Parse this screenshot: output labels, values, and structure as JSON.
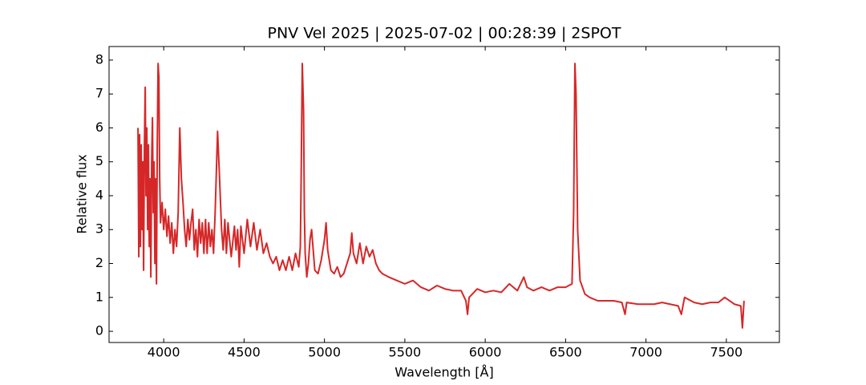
{
  "chart_data": {
    "type": "line",
    "title": "PNV Vel 2025 | 2025-07-02 | 00:28:39 | 2SPOT",
    "x_label": "Wavelength [Å]",
    "y_label": "Relative flux",
    "xlim": [
      3660,
      7830
    ],
    "ylim": [
      -0.33,
      8.4
    ],
    "xticks": [
      4000,
      4500,
      5000,
      5500,
      6000,
      6500,
      7000,
      7500
    ],
    "yticks": [
      0,
      1,
      2,
      3,
      4,
      5,
      6,
      7,
      8
    ],
    "grid": false,
    "series": [
      {
        "color": "#d62728",
        "x": [
          3840,
          3845,
          3850,
          3855,
          3860,
          3865,
          3870,
          3875,
          3880,
          3885,
          3890,
          3895,
          3900,
          3905,
          3910,
          3915,
          3920,
          3925,
          3930,
          3935,
          3940,
          3945,
          3950,
          3955,
          3960,
          3965,
          3970,
          3975,
          3980,
          3990,
          4000,
          4010,
          4020,
          4030,
          4040,
          4050,
          4060,
          4070,
          4080,
          4090,
          4100,
          4110,
          4120,
          4130,
          4140,
          4150,
          4160,
          4170,
          4180,
          4190,
          4200,
          4210,
          4220,
          4230,
          4240,
          4250,
          4260,
          4270,
          4280,
          4290,
          4300,
          4310,
          4320,
          4335,
          4345,
          4360,
          4370,
          4380,
          4390,
          4400,
          4420,
          4440,
          4450,
          4460,
          4470,
          4480,
          4500,
          4520,
          4540,
          4560,
          4580,
          4600,
          4620,
          4640,
          4660,
          4680,
          4700,
          4720,
          4740,
          4760,
          4780,
          4800,
          4820,
          4840,
          4850,
          4855,
          4862,
          4870,
          4875,
          4880,
          4890,
          4900,
          4910,
          4920,
          4930,
          4940,
          4960,
          4980,
          5000,
          5010,
          5020,
          5040,
          5060,
          5080,
          5100,
          5120,
          5140,
          5160,
          5170,
          5180,
          5200,
          5220,
          5240,
          5260,
          5280,
          5300,
          5320,
          5340,
          5360,
          5400,
          5450,
          5500,
          5550,
          5600,
          5650,
          5700,
          5750,
          5800,
          5850,
          5880,
          5890,
          5900,
          5950,
          6000,
          6050,
          6100,
          6150,
          6200,
          6240,
          6260,
          6300,
          6350,
          6400,
          6450,
          6500,
          6540,
          6550,
          6558,
          6565,
          6575,
          6590,
          6620,
          6650,
          6700,
          6750,
          6800,
          6850,
          6870,
          6880,
          6950,
          7000,
          7050,
          7100,
          7150,
          7200,
          7220,
          7240,
          7300,
          7350,
          7400,
          7450,
          7490,
          7550,
          7590,
          7600,
          7610
        ],
        "values": [
          6.0,
          2.2,
          5.8,
          2.5,
          5.5,
          3.0,
          5.0,
          1.8,
          5.5,
          7.2,
          4.0,
          6.0,
          3.0,
          5.5,
          2.5,
          4.5,
          1.6,
          5.0,
          6.3,
          3.5,
          5.0,
          2.0,
          4.5,
          1.4,
          5.5,
          7.9,
          7.5,
          4.5,
          3.2,
          3.8,
          3.0,
          3.6,
          2.8,
          3.4,
          2.6,
          3.2,
          2.3,
          3.0,
          2.5,
          3.5,
          6.0,
          4.5,
          3.8,
          3.0,
          2.5,
          3.3,
          2.7,
          3.2,
          3.6,
          2.4,
          3.0,
          2.2,
          3.3,
          2.6,
          3.2,
          2.3,
          3.3,
          2.3,
          3.2,
          2.5,
          3.0,
          2.3,
          3.5,
          5.9,
          4.8,
          3.0,
          2.4,
          3.3,
          2.3,
          3.2,
          2.2,
          3.1,
          2.4,
          3.0,
          1.9,
          3.1,
          2.3,
          3.3,
          2.5,
          3.2,
          2.4,
          3.0,
          2.3,
          2.6,
          2.2,
          2.0,
          2.2,
          1.8,
          2.1,
          1.8,
          2.2,
          1.8,
          2.3,
          1.9,
          2.5,
          4.5,
          7.9,
          6.5,
          3.5,
          2.3,
          1.6,
          2.0,
          2.7,
          3.0,
          2.4,
          1.8,
          1.7,
          2.1,
          2.7,
          3.2,
          2.4,
          1.8,
          1.7,
          1.9,
          1.6,
          1.7,
          2.0,
          2.3,
          2.9,
          2.3,
          2.0,
          2.6,
          2.0,
          2.5,
          2.2,
          2.4,
          2.0,
          1.8,
          1.7,
          1.6,
          1.5,
          1.4,
          1.5,
          1.3,
          1.2,
          1.35,
          1.25,
          1.2,
          1.2,
          0.9,
          0.5,
          1.0,
          1.25,
          1.15,
          1.2,
          1.15,
          1.4,
          1.2,
          1.6,
          1.3,
          1.2,
          1.3,
          1.2,
          1.3,
          1.3,
          1.4,
          3.5,
          7.9,
          7.0,
          3.0,
          1.5,
          1.1,
          1.0,
          0.9,
          0.9,
          0.9,
          0.85,
          0.5,
          0.85,
          0.8,
          0.8,
          0.8,
          0.85,
          0.8,
          0.75,
          0.5,
          1.0,
          0.85,
          0.8,
          0.85,
          0.85,
          1.0,
          0.8,
          0.75,
          0.1,
          0.9
        ]
      }
    ]
  }
}
